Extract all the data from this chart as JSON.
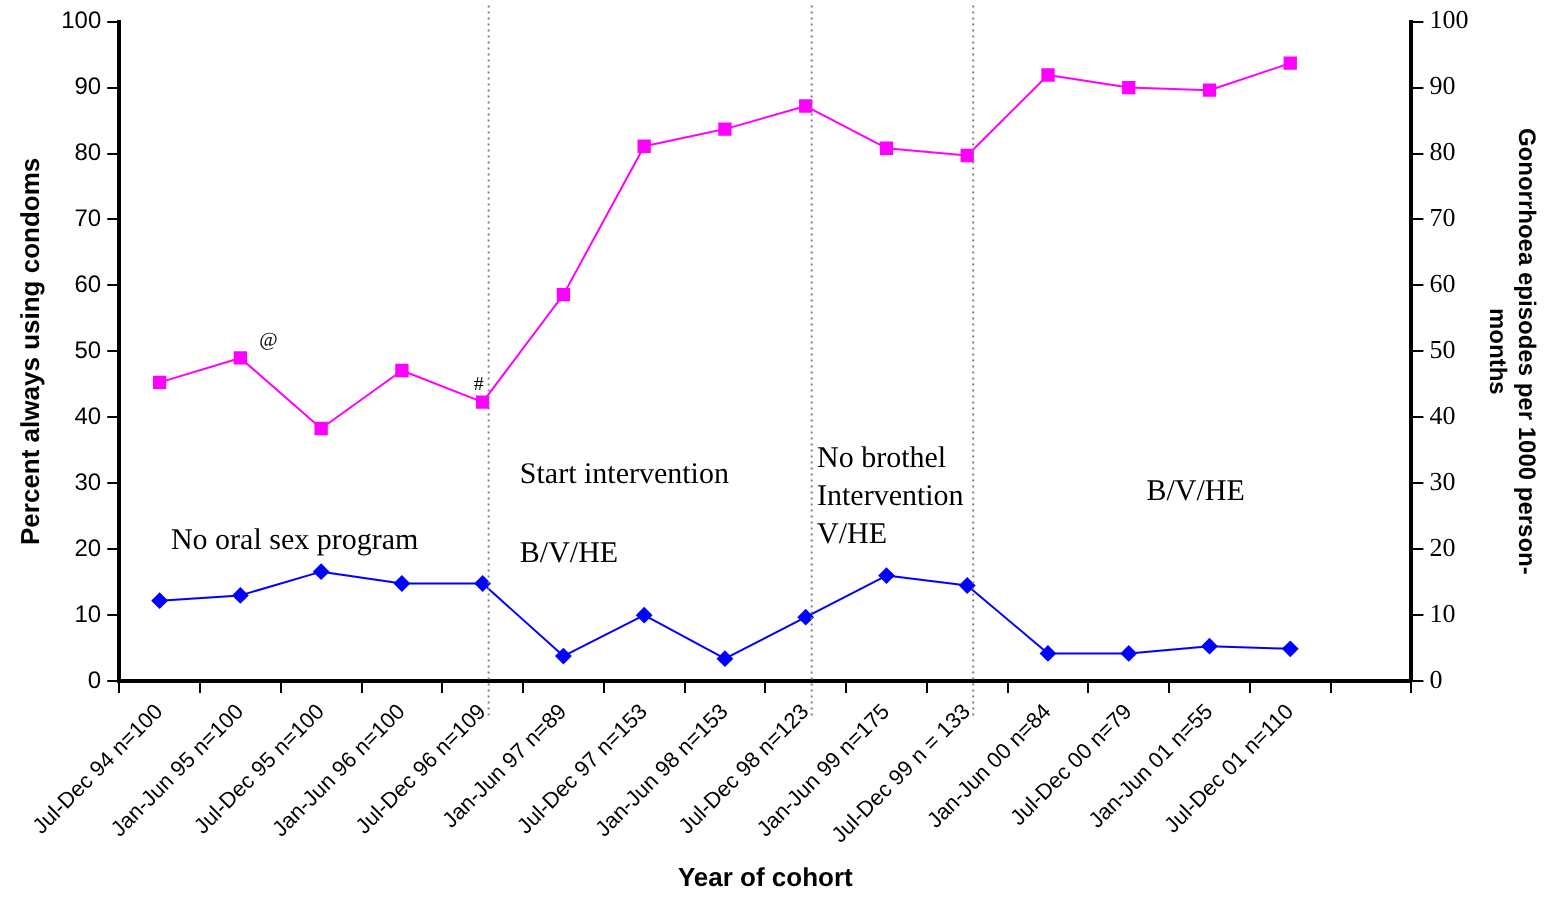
{
  "chart_data": {
    "type": "line",
    "xlabel": "Year of cohort",
    "ylabel": "Percent always using condoms",
    "y2label": "Gonorrhoea episodes per 1000 person-months",
    "categories": [
      "Jul-Dec 94 n=100",
      "Jan-Jun 95 n=100",
      "Jul-Dec 95 n=100",
      "Jan-Jun 96 n=100",
      "Jul-Dec 96 n=109",
      "Jan-Jun 97 n=89",
      "Jul-Dec 97 n=153",
      "Jan-Jun 98 n=153",
      "Jul-Dec 98 n=123",
      "Jan-Jun 99 n=175",
      "Jul-Dec 99 n = 133",
      "Jan-Jun 00 n=84",
      "Jul-Dec 00 n=79",
      "Jan-Jun 01 n=55",
      "Jul-Dec 01 n=110",
      null
    ],
    "series": [
      {
        "color": "#ff00ff",
        "marker": "square",
        "values": [
          45.3,
          49,
          38.3,
          47.1,
          42.3,
          58.6,
          81.1,
          83.7,
          87.2,
          80.8,
          79.7,
          91.9,
          90,
          89.6,
          93.7,
          null
        ]
      },
      {
        "color": "#0000ff",
        "marker": "diamond",
        "axis": "y2",
        "values": [
          12.2,
          13,
          16.6,
          14.8,
          14.8,
          3.8,
          10,
          3.4,
          9.7,
          16,
          14.5,
          4.2,
          4.2,
          5.3,
          4.9,
          null
        ]
      }
    ],
    "ylim": [
      0,
      100
    ],
    "yticks": [
      0,
      10,
      20,
      30,
      40,
      50,
      60,
      70,
      80,
      90,
      100
    ],
    "y2lim": [
      0,
      100
    ],
    "y2ticks": [
      0,
      10,
      20,
      30,
      40,
      50,
      60,
      70,
      80,
      90,
      100
    ],
    "ref_lines": [
      {
        "axis": "x",
        "value": "Jul-Dec 96 n=109",
        "color": "#808080",
        "line_style": "dotted"
      },
      {
        "axis": "x",
        "value": "Jul-Dec 98 n=123",
        "color": "#808080",
        "line_style": "dotted"
      },
      {
        "axis": "x",
        "value": "Jul-Dec 99 n = 133",
        "color": "#808080",
        "line_style": "dotted"
      }
    ],
    "annotations": [
      {
        "text": "@",
        "x": "Jan-Jun 95 n=100",
        "y": 49
      },
      {
        "text": "#",
        "x": "Jul-Dec 96 n=109",
        "y": 42.3
      },
      "No oral sex program",
      "Start intervention",
      "B/V/HE",
      "No brothel\nIntervention\nV/HE",
      "B/V/HE"
    ],
    "grid": false,
    "legend": false,
    "line_style": "solid"
  }
}
